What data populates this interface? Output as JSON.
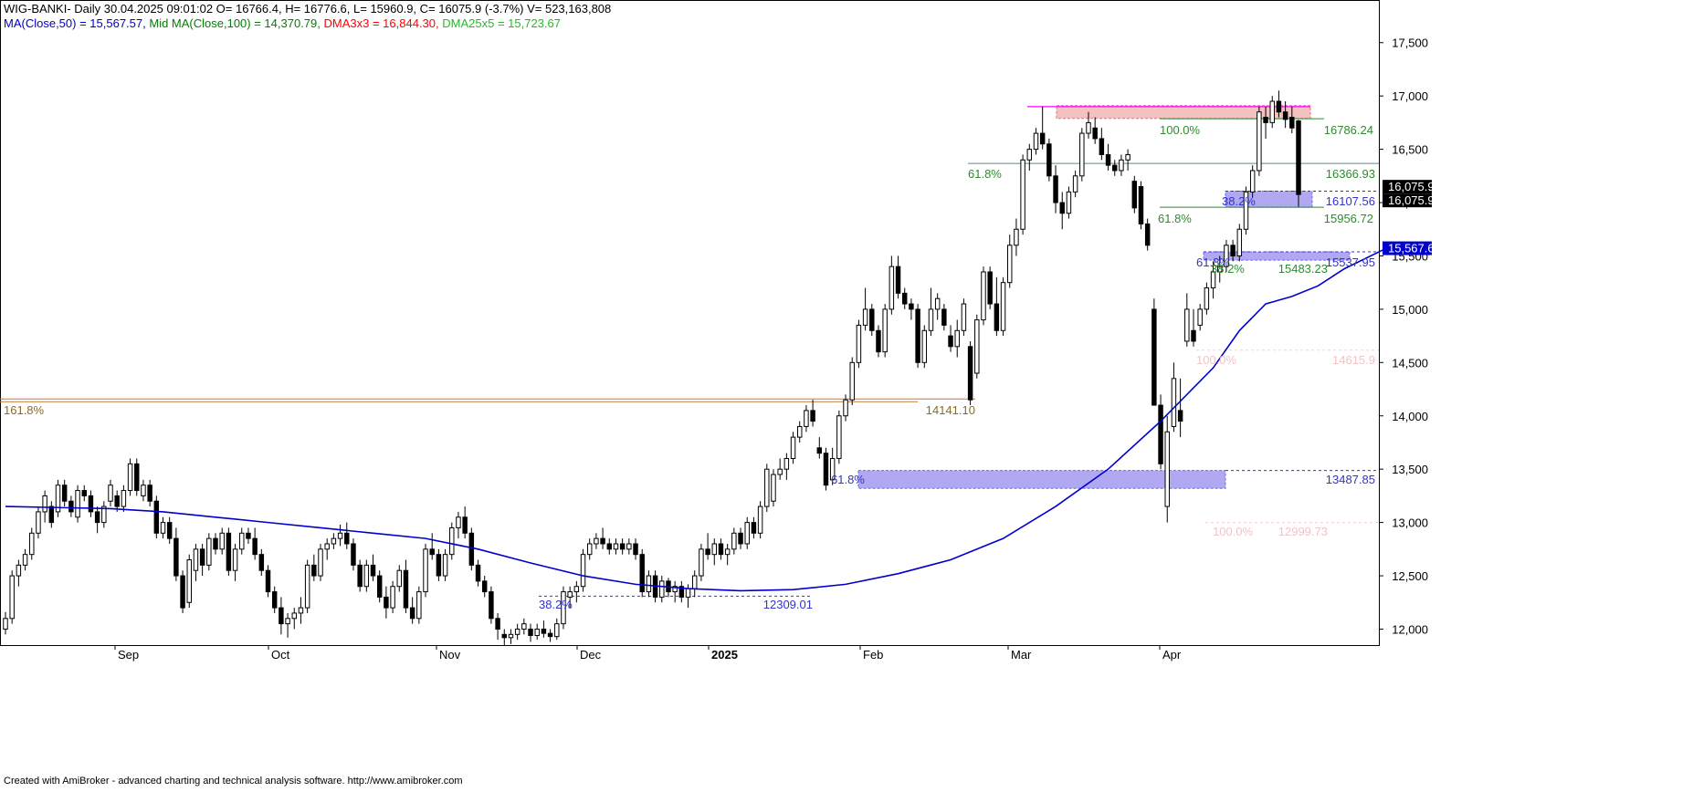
{
  "header": {
    "line1": "WIG-BANKI- Daily 30.04.2025 09:01:02 O= 16766.4, H= 16776.6, L= 15960.9, C= 16075.9 (-3.7%) V= 523,163,808",
    "ma50": "MA(Close,50) = 15,567.57,",
    "ma100": "Mid MA(Close,100) = 14,370.79,",
    "dma3": "DMA3x3 = 16,844.30,",
    "dma25": "DMA25x5 = 15,723.67"
  },
  "credit": "Created with AmiBroker - advanced charting and technical analysis software. http://www.amibroker.com",
  "colors": {
    "ma50": "#0000cc",
    "ma100": "#008000",
    "dma3": "#ff0000",
    "dma25": "#33cc33",
    "fib_green": "#2e8b2e",
    "fib_blue": "#3333cc",
    "resistance_fill": "#f4c0c0",
    "zone_fill": "#b0a8f0",
    "orange_line": "#c87830"
  },
  "chart_data": {
    "type": "candlestick",
    "symbol": "WIG-BANKI",
    "interval": "Daily",
    "ylim": [
      11850,
      17900
    ],
    "y_ticks": [
      12000,
      12500,
      13000,
      13500,
      14000,
      14500,
      15000,
      15500,
      16000,
      16500,
      17000,
      17500
    ],
    "y_tick_labels": [
      "12,000",
      "12,500",
      "13,000",
      "13,500",
      "14,000",
      "14,500",
      "15,000",
      "15,500",
      "16,000",
      "16,500",
      "17,000",
      "17,500"
    ],
    "x_labels": [
      "Sep",
      "Oct",
      "Nov",
      "Dec",
      "2025",
      "Feb",
      "Mar",
      "Apr"
    ],
    "last_close_label": "16,075.9",
    "last_ma_label": "15,567.6",
    "candles": [
      [
        12000,
        12160,
        11950,
        12100
      ],
      [
        12100,
        12550,
        12050,
        12500
      ],
      [
        12500,
        12650,
        12400,
        12600
      ],
      [
        12600,
        12750,
        12550,
        12700
      ],
      [
        12700,
        12950,
        12650,
        12900
      ],
      [
        12900,
        13150,
        12850,
        13100
      ],
      [
        13100,
        13300,
        13000,
        13250
      ],
      [
        13150,
        13200,
        12950,
        13000
      ],
      [
        13100,
        13400,
        13050,
        13350
      ],
      [
        13350,
        13400,
        13150,
        13200
      ],
      [
        13200,
        13250,
        13050,
        13100
      ],
      [
        13050,
        13350,
        13000,
        13300
      ],
      [
        13300,
        13350,
        13200,
        13250
      ],
      [
        13250,
        13300,
        13050,
        13100
      ],
      [
        13100,
        13150,
        12900,
        13000
      ],
      [
        13000,
        13200,
        12950,
        13150
      ],
      [
        13200,
        13400,
        13150,
        13350
      ],
      [
        13250,
        13300,
        13100,
        13150
      ],
      [
        13150,
        13350,
        13100,
        13300
      ],
      [
        13300,
        13600,
        13250,
        13550
      ],
      [
        13550,
        13600,
        13250,
        13300
      ],
      [
        13250,
        13400,
        13200,
        13350
      ],
      [
        13350,
        13400,
        13150,
        13200
      ],
      [
        13200,
        13250,
        12850,
        12900
      ],
      [
        12900,
        13050,
        12850,
        13000
      ],
      [
        13000,
        13050,
        12800,
        12850
      ],
      [
        12850,
        12950,
        12450,
        12500
      ],
      [
        12500,
        12550,
        12150,
        12200
      ],
      [
        12250,
        12700,
        12200,
        12650
      ],
      [
        12550,
        12800,
        12450,
        12750
      ],
      [
        12750,
        12800,
        12500,
        12600
      ],
      [
        12600,
        12900,
        12550,
        12850
      ],
      [
        12850,
        12900,
        12700,
        12750
      ],
      [
        12750,
        12950,
        12700,
        12900
      ],
      [
        12900,
        12950,
        12500,
        12550
      ],
      [
        12550,
        12800,
        12450,
        12750
      ],
      [
        12750,
        12950,
        12700,
        12900
      ],
      [
        12900,
        12950,
        12800,
        12850
      ],
      [
        12850,
        12950,
        12650,
        12700
      ],
      [
        12700,
        12750,
        12500,
        12550
      ],
      [
        12550,
        12600,
        12300,
        12350
      ],
      [
        12350,
        12400,
        12150,
        12200
      ],
      [
        12200,
        12300,
        11950,
        12050
      ],
      [
        12050,
        12150,
        11920,
        12100
      ],
      [
        12100,
        12200,
        12000,
        12150
      ],
      [
        12150,
        12300,
        12050,
        12200
      ],
      [
        12200,
        12650,
        12150,
        12600
      ],
      [
        12600,
        12700,
        12450,
        12500
      ],
      [
        12500,
        12800,
        12450,
        12750
      ],
      [
        12750,
        12850,
        12650,
        12800
      ],
      [
        12800,
        12900,
        12750,
        12850
      ],
      [
        12850,
        12980,
        12780,
        12900
      ],
      [
        12900,
        13000,
        12750,
        12800
      ],
      [
        12800,
        12850,
        12550,
        12600
      ],
      [
        12600,
        12650,
        12350,
        12400
      ],
      [
        12400,
        12650,
        12350,
        12600
      ],
      [
        12600,
        12700,
        12450,
        12500
      ],
      [
        12500,
        12550,
        12250,
        12300
      ],
      [
        12300,
        12400,
        12100,
        12200
      ],
      [
        12200,
        12450,
        12150,
        12400
      ],
      [
        12400,
        12600,
        12350,
        12550
      ],
      [
        12550,
        12650,
        12150,
        12200
      ],
      [
        12200,
        12300,
        12050,
        12100
      ],
      [
        12100,
        12400,
        12050,
        12350
      ],
      [
        12350,
        12800,
        12300,
        12750
      ],
      [
        12750,
        12900,
        12650,
        12700
      ],
      [
        12700,
        12750,
        12450,
        12500
      ],
      [
        12500,
        12750,
        12450,
        12700
      ],
      [
        12700,
        13000,
        12650,
        12950
      ],
      [
        12950,
        13100,
        12850,
        13050
      ],
      [
        13050,
        13150,
        12850,
        12900
      ],
      [
        12900,
        12950,
        12550,
        12600
      ],
      [
        12600,
        12650,
        12400,
        12450
      ],
      [
        12450,
        12500,
        12300,
        12350
      ],
      [
        12350,
        12400,
        12050,
        12100
      ],
      [
        12100,
        12150,
        11900,
        12000
      ],
      [
        11950,
        12000,
        11850,
        11920
      ],
      [
        11920,
        12000,
        11860,
        11950
      ],
      [
        11950,
        12050,
        11900,
        12000
      ],
      [
        12000,
        12100,
        11950,
        12050
      ],
      [
        12000,
        12050,
        11880,
        11940
      ],
      [
        11940,
        12050,
        11900,
        12000
      ],
      [
        12000,
        12080,
        11920,
        11960
      ],
      [
        11960,
        12000,
        11880,
        11930
      ],
      [
        11930,
        12100,
        11900,
        12050
      ],
      [
        12050,
        12400,
        12000,
        12350
      ],
      [
        12300,
        12400,
        12200,
        12350
      ],
      [
        12350,
        12450,
        12250,
        12400
      ],
      [
        12400,
        12750,
        12350,
        12700
      ],
      [
        12700,
        12850,
        12650,
        12800
      ],
      [
        12800,
        12900,
        12750,
        12850
      ],
      [
        12850,
        12950,
        12750,
        12800
      ],
      [
        12800,
        12850,
        12700,
        12750
      ],
      [
        12750,
        12850,
        12700,
        12800
      ],
      [
        12800,
        12850,
        12700,
        12750
      ],
      [
        12750,
        12850,
        12700,
        12800
      ],
      [
        12800,
        12850,
        12650,
        12700
      ],
      [
        12700,
        12750,
        12300,
        12350
      ],
      [
        12350,
        12550,
        12300,
        12500
      ],
      [
        12500,
        12550,
        12250,
        12300
      ],
      [
        12300,
        12500,
        12250,
        12450
      ],
      [
        12450,
        12480,
        12300,
        12350
      ],
      [
        12350,
        12450,
        12250,
        12400
      ],
      [
        12400,
        12450,
        12250,
        12300
      ],
      [
        12300,
        12420,
        12200,
        12380
      ],
      [
        12380,
        12550,
        12300,
        12500
      ],
      [
        12500,
        12800,
        12450,
        12750
      ],
      [
        12750,
        12900,
        12650,
        12700
      ],
      [
        12700,
        12850,
        12600,
        12800
      ],
      [
        12800,
        12850,
        12650,
        12700
      ],
      [
        12700,
        12800,
        12600,
        12750
      ],
      [
        12750,
        12950,
        12700,
        12900
      ],
      [
        12900,
        12950,
        12750,
        12800
      ],
      [
        12800,
        13050,
        12750,
        13000
      ],
      [
        13000,
        13050,
        12850,
        12900
      ],
      [
        12900,
        13200,
        12850,
        13150
      ],
      [
        13150,
        13550,
        13100,
        13500
      ],
      [
        13200,
        13500,
        13150,
        13450
      ],
      [
        13450,
        13600,
        13400,
        13500
      ],
      [
        13500,
        13650,
        13400,
        13600
      ],
      [
        13600,
        13850,
        13550,
        13800
      ],
      [
        13800,
        13950,
        13750,
        13900
      ],
      [
        13900,
        14100,
        13850,
        14050
      ],
      [
        14050,
        14150,
        13900,
        13950
      ],
      [
        13700,
        13800,
        13600,
        13650
      ],
      [
        13650,
        13700,
        13300,
        13350
      ],
      [
        13400,
        13700,
        13350,
        13600
      ],
      [
        13600,
        14050,
        13550,
        14000
      ],
      [
        14000,
        14200,
        13950,
        14150
      ],
      [
        14150,
        14550,
        14100,
        14500
      ],
      [
        14500,
        14900,
        14450,
        14850
      ],
      [
        14850,
        15200,
        14800,
        15000
      ],
      [
        15000,
        15050,
        14750,
        14800
      ],
      [
        14800,
        14850,
        14550,
        14600
      ],
      [
        14600,
        15050,
        14550,
        15000
      ],
      [
        15000,
        15500,
        14950,
        15400
      ],
      [
        15400,
        15500,
        15100,
        15150
      ],
      [
        15150,
        15200,
        15000,
        15050
      ],
      [
        15050,
        15100,
        14900,
        15000
      ],
      [
        15000,
        15050,
        14450,
        14500
      ],
      [
        14500,
        14850,
        14450,
        14800
      ],
      [
        14800,
        15200,
        14750,
        15000
      ],
      [
        15000,
        15150,
        14900,
        15100
      ],
      [
        15000,
        15050,
        14800,
        14850
      ],
      [
        14750,
        14850,
        14600,
        14650
      ],
      [
        14650,
        14900,
        14550,
        14800
      ],
      [
        14800,
        15100,
        14750,
        15050
      ],
      [
        14650,
        14700,
        14100,
        14150
      ],
      [
        14400,
        14950,
        14350,
        14900
      ],
      [
        14900,
        15400,
        14850,
        15350
      ],
      [
        15350,
        15400,
        15000,
        15050
      ],
      [
        15050,
        15300,
        14750,
        14800
      ],
      [
        14800,
        15300,
        14750,
        15250
      ],
      [
        15250,
        15700,
        15200,
        15600
      ],
      [
        15600,
        15850,
        15500,
        15750
      ],
      [
        15750,
        16450,
        15700,
        16400
      ],
      [
        16400,
        16550,
        16300,
        16500
      ],
      [
        16500,
        16700,
        16450,
        16650
      ],
      [
        16650,
        16900,
        16500,
        16550
      ],
      [
        16550,
        16600,
        16200,
        16250
      ],
      [
        16250,
        16350,
        15900,
        16000
      ],
      [
        16000,
        16100,
        15750,
        15900
      ],
      [
        15900,
        16150,
        15850,
        16100
      ],
      [
        16100,
        16300,
        16050,
        16250
      ],
      [
        16250,
        16700,
        16200,
        16650
      ],
      [
        16650,
        16850,
        16600,
        16750
      ],
      [
        16700,
        16800,
        16550,
        16600
      ],
      [
        16600,
        16700,
        16400,
        16450
      ],
      [
        16450,
        16550,
        16300,
        16350
      ],
      [
        16350,
        16400,
        16250,
        16300
      ],
      [
        16300,
        16450,
        16250,
        16400
      ],
      [
        16400,
        16500,
        16300,
        16450
      ],
      [
        16200,
        16250,
        15900,
        15950
      ],
      [
        16150,
        16200,
        15750,
        15800
      ],
      [
        15800,
        15850,
        15550,
        15600
      ],
      [
        15000,
        15100,
        14150,
        14100
      ],
      [
        14100,
        14200,
        13500,
        13550
      ],
      [
        13150,
        14000,
        13000,
        13850
      ],
      [
        13900,
        14500,
        13850,
        14350
      ],
      [
        14050,
        14350,
        13800,
        13950
      ],
      [
        14700,
        15150,
        14650,
        15000
      ],
      [
        14800,
        15000,
        14650,
        14700
      ],
      [
        14850,
        15050,
        14800,
        15000
      ],
      [
        15000,
        15250,
        14950,
        15200
      ],
      [
        15200,
        15450,
        15100,
        15350
      ],
      [
        15350,
        15500,
        15250,
        15400
      ],
      [
        15400,
        15650,
        15350,
        15600
      ],
      [
        15600,
        15650,
        15450,
        15500
      ],
      [
        15500,
        15800,
        15450,
        15750
      ],
      [
        15750,
        16150,
        15700,
        16100
      ],
      [
        16100,
        16350,
        16050,
        16300
      ],
      [
        16300,
        16900,
        16250,
        16850
      ],
      [
        16800,
        16900,
        16600,
        16750
      ],
      [
        16750,
        17000,
        16700,
        16950
      ],
      [
        16950,
        17050,
        16800,
        16850
      ],
      [
        16850,
        16950,
        16700,
        16780
      ],
      [
        16800,
        16900,
        16650,
        16700
      ],
      [
        16766.4,
        16776.6,
        15960.9,
        16075.9
      ]
    ],
    "ma50": [
      [
        0,
        13150
      ],
      [
        8,
        13140
      ],
      [
        16,
        13130
      ],
      [
        24,
        13100
      ],
      [
        32,
        13050
      ],
      [
        40,
        13000
      ],
      [
        48,
        12950
      ],
      [
        56,
        12900
      ],
      [
        64,
        12850
      ],
      [
        72,
        12750
      ],
      [
        80,
        12620
      ],
      [
        88,
        12500
      ],
      [
        96,
        12420
      ],
      [
        104,
        12380
      ],
      [
        112,
        12360
      ],
      [
        120,
        12370
      ],
      [
        128,
        12420
      ],
      [
        136,
        12520
      ],
      [
        144,
        12650
      ],
      [
        152,
        12850
      ],
      [
        160,
        13150
      ],
      [
        168,
        13500
      ],
      [
        176,
        13950
      ],
      [
        184,
        14450
      ],
      [
        188,
        14800
      ],
      [
        192,
        15050
      ],
      [
        196,
        15120
      ],
      [
        200,
        15220
      ],
      [
        204,
        15380
      ],
      [
        210,
        15560
      ]
    ],
    "annotations": [
      {
        "text": "161.8%",
        "color": "orange"
      },
      {
        "text": "14141.10",
        "color": "orange"
      },
      {
        "text": "61.8%",
        "color": "green"
      },
      {
        "text": "16366.93",
        "color": "green"
      },
      {
        "text": "100.0%",
        "color": "green"
      },
      {
        "text": "16786.24",
        "color": "green"
      },
      {
        "text": "38.2%",
        "color": "blue"
      },
      {
        "text": "16107.56",
        "color": "blue"
      },
      {
        "text": "61.8%",
        "color": "green"
      },
      {
        "text": "15956.72",
        "color": "green"
      },
      {
        "text": "61.8%",
        "color": "blue"
      },
      {
        "text": "15537.95",
        "color": "blue"
      },
      {
        "text": "38.2%",
        "color": "green"
      },
      {
        "text": "15483.23",
        "color": "green"
      },
      {
        "text": "61.8%",
        "color": "blue"
      },
      {
        "text": "13487.85",
        "color": "blue"
      },
      {
        "text": "38.2%",
        "color": "blue"
      },
      {
        "text": "12309.01",
        "color": "blue"
      },
      {
        "text": "100.0%",
        "color": "faint"
      },
      {
        "text": "14615.9",
        "color": "faint"
      },
      {
        "text": "100.0%",
        "color": "faint"
      },
      {
        "text": "12999.73",
        "color": "faint"
      }
    ]
  }
}
